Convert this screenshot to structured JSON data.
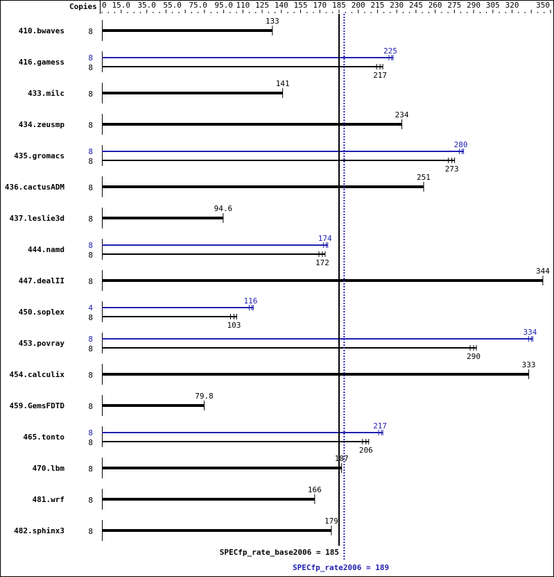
{
  "chart_data": {
    "type": "bar",
    "orientation": "horizontal",
    "xlim": [
      0,
      350
    ],
    "copies_header": "Copies",
    "tick_labels": [
      "0",
      "15.0",
      "35.0",
      "55.0",
      "75.0",
      "95.0",
      "110",
      "125",
      "140",
      "155",
      "170",
      "185",
      "200",
      "215",
      "230",
      "245",
      "260",
      "275",
      "290",
      "305",
      "320",
      "350"
    ],
    "tick_values": [
      0,
      15,
      35,
      55,
      75,
      95,
      110,
      125,
      140,
      155,
      170,
      185,
      200,
      215,
      230,
      245,
      260,
      275,
      290,
      305,
      320,
      350
    ],
    "colors": {
      "base": "#000000",
      "peak": "#2020b0"
    },
    "categories": [
      "410.bwaves",
      "416.gamess",
      "433.milc",
      "434.zeusmp",
      "435.gromacs",
      "436.cactusADM",
      "437.leslie3d",
      "444.namd",
      "447.dealII",
      "450.soplex",
      "453.povray",
      "454.calculix",
      "459.GemsFDTD",
      "465.tonto",
      "470.lbm",
      "481.wrf",
      "482.sphinx3"
    ],
    "series": [
      {
        "name": "SPECfp_rate_base2006",
        "copies": [
          "8",
          "8",
          "8",
          "8",
          "8",
          "8",
          "8",
          "8",
          "8",
          "8",
          "8",
          "8",
          "8",
          "8",
          "8",
          "8",
          "8"
        ],
        "values": [
          133,
          217,
          141,
          234,
          273,
          251,
          94.6,
          172,
          344,
          103,
          290,
          333,
          79.8,
          206,
          187,
          166,
          179
        ],
        "labels": [
          "133",
          "217",
          "141",
          "234",
          "273",
          "251",
          "94.6",
          "172",
          "344",
          "103",
          "290",
          "333",
          "79.8",
          "206",
          "187",
          "166",
          "179"
        ]
      },
      {
        "name": "SPECfp_rate2006",
        "copies": [
          null,
          "8",
          null,
          null,
          "8",
          null,
          null,
          "8",
          null,
          "4",
          "8",
          null,
          null,
          "8",
          null,
          null,
          null
        ],
        "values": [
          null,
          225,
          null,
          null,
          280,
          null,
          null,
          174,
          null,
          116,
          334,
          null,
          null,
          217,
          null,
          null,
          null
        ],
        "labels": [
          null,
          "225",
          null,
          null,
          "280",
          null,
          null,
          "174",
          null,
          "116",
          "334",
          null,
          null,
          "217",
          null,
          null,
          null
        ]
      }
    ],
    "reference_lines": [
      {
        "label": "SPECfp_rate_base2006 = 185",
        "value": 185,
        "style": "solid"
      },
      {
        "label": "SPECfp_rate2006 = 189",
        "value": 189,
        "style": "dotted"
      }
    ]
  }
}
